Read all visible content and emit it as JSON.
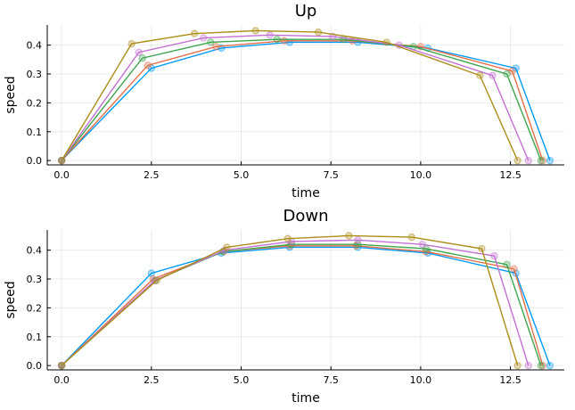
{
  "chart_data": [
    {
      "type": "line",
      "title": "Up",
      "xlabel": "time",
      "ylabel": "speed",
      "xlim": [
        -0.4,
        14.0
      ],
      "ylim": [
        -0.015,
        0.47
      ],
      "xticks": [
        0.0,
        2.5,
        5.0,
        7.5,
        10.0,
        12.5
      ],
      "xtick_labels": [
        "0.0",
        "2.5",
        "5.0",
        "7.5",
        "10.0",
        "12.5"
      ],
      "yticks": [
        0.0,
        0.1,
        0.2,
        0.3,
        0.4
      ],
      "ytick_labels": [
        "0.0",
        "0.1",
        "0.2",
        "0.3",
        "0.4"
      ],
      "grid": true,
      "legend": "none",
      "series": [
        {
          "color": "#009AFA",
          "x": [
            0.0,
            2.5,
            4.45,
            6.35,
            8.25,
            10.2,
            12.65,
            13.6
          ],
          "y": [
            0.0,
            0.32,
            0.39,
            0.41,
            0.41,
            0.39,
            0.32,
            0.0
          ]
        },
        {
          "color": "#E36F47",
          "x": [
            0.0,
            2.4,
            4.3,
            6.2,
            8.1,
            10.0,
            12.55,
            13.4
          ],
          "y": [
            0.0,
            0.33,
            0.395,
            0.415,
            0.415,
            0.395,
            0.31,
            0.0
          ]
        },
        {
          "color": "#3EA44E",
          "x": [
            0.0,
            2.25,
            4.15,
            6.0,
            7.85,
            9.8,
            12.4,
            13.35
          ],
          "y": [
            0.0,
            0.355,
            0.41,
            0.42,
            0.42,
            0.395,
            0.3,
            0.0
          ]
        },
        {
          "color": "#C371D2",
          "x": [
            0.0,
            2.15,
            3.95,
            5.8,
            7.55,
            9.4,
            12.0,
            13.0
          ],
          "y": [
            0.0,
            0.375,
            0.425,
            0.435,
            0.43,
            0.4,
            0.295,
            0.0
          ]
        },
        {
          "color": "#AC8D18",
          "x": [
            0.0,
            1.95,
            3.7,
            5.4,
            7.15,
            9.05,
            11.65,
            12.7
          ],
          "y": [
            0.0,
            0.405,
            0.44,
            0.45,
            0.445,
            0.41,
            0.295,
            0.0
          ]
        }
      ]
    },
    {
      "type": "line",
      "title": "Down",
      "xlabel": "time",
      "ylabel": "speed",
      "xlim": [
        -0.4,
        14.0
      ],
      "ylim": [
        -0.015,
        0.47
      ],
      "xticks": [
        0.0,
        2.5,
        5.0,
        7.5,
        10.0,
        12.5
      ],
      "xtick_labels": [
        "0.0",
        "2.5",
        "5.0",
        "7.5",
        "10.0",
        "12.5"
      ],
      "yticks": [
        0.0,
        0.1,
        0.2,
        0.3,
        0.4
      ],
      "ytick_labels": [
        "0.0",
        "0.1",
        "0.2",
        "0.3",
        "0.4"
      ],
      "grid": true,
      "legend": "none",
      "series": [
        {
          "color": "#009AFA",
          "x": [
            0.0,
            2.5,
            4.45,
            6.35,
            8.25,
            10.2,
            12.65,
            13.6
          ],
          "y": [
            0.0,
            0.32,
            0.39,
            0.41,
            0.41,
            0.39,
            0.32,
            0.0
          ]
        },
        {
          "color": "#E36F47",
          "x": [
            0.0,
            2.55,
            4.5,
            6.35,
            8.2,
            10.15,
            12.6,
            13.4
          ],
          "y": [
            0.0,
            0.3,
            0.395,
            0.415,
            0.415,
            0.395,
            0.335,
            0.0
          ]
        },
        {
          "color": "#3EA44E",
          "x": [
            0.0,
            2.6,
            4.5,
            6.4,
            8.25,
            10.15,
            12.4,
            13.35
          ],
          "y": [
            0.0,
            0.295,
            0.395,
            0.42,
            0.42,
            0.405,
            0.35,
            0.0
          ]
        },
        {
          "color": "#C371D2",
          "x": [
            0.0,
            2.6,
            4.55,
            6.4,
            8.25,
            10.05,
            12.05,
            13.0
          ],
          "y": [
            0.0,
            0.295,
            0.4,
            0.43,
            0.435,
            0.42,
            0.38,
            0.0
          ]
        },
        {
          "color": "#AC8D18",
          "x": [
            0.0,
            2.65,
            4.6,
            6.3,
            8.0,
            9.75,
            11.7,
            12.7
          ],
          "y": [
            0.0,
            0.295,
            0.41,
            0.44,
            0.45,
            0.445,
            0.405,
            0.0
          ]
        }
      ]
    }
  ]
}
